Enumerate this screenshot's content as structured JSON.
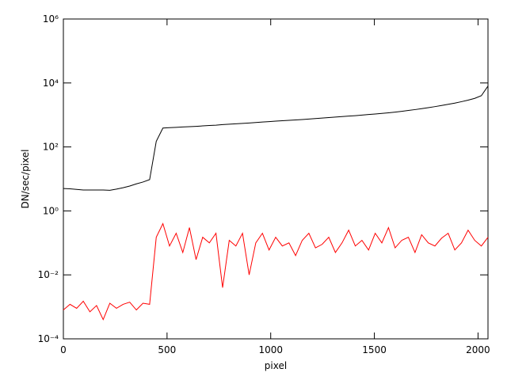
{
  "chart_data": {
    "type": "line",
    "xlabel": "pixel",
    "ylabel": "DN/sec/pixel",
    "xlim": [
      0,
      2048
    ],
    "xticks": [
      0,
      500,
      1000,
      1500,
      2000
    ],
    "ylim": [
      0.0001,
      1000000
    ],
    "ylog": true,
    "yticks": [
      {
        "value": 0.0001,
        "label": "10⁻⁴"
      },
      {
        "value": 0.01,
        "label": "10⁻²"
      },
      {
        "value": 1,
        "label": "10⁰"
      },
      {
        "value": 100,
        "label": "10²"
      },
      {
        "value": 10000,
        "label": "10⁴"
      },
      {
        "value": 1000000,
        "label": "10⁶"
      }
    ],
    "x": [
      0,
      32,
      64,
      96,
      128,
      160,
      192,
      224,
      256,
      288,
      320,
      352,
      384,
      416,
      448,
      480,
      512,
      544,
      576,
      608,
      640,
      672,
      704,
      736,
      768,
      800,
      832,
      864,
      896,
      928,
      960,
      992,
      1024,
      1056,
      1088,
      1120,
      1152,
      1184,
      1216,
      1248,
      1280,
      1312,
      1344,
      1376,
      1408,
      1440,
      1472,
      1504,
      1536,
      1568,
      1600,
      1632,
      1664,
      1696,
      1728,
      1760,
      1792,
      1824,
      1856,
      1888,
      1920,
      1952,
      1984,
      2016,
      2048
    ],
    "series": [
      {
        "color": "#000000",
        "values": [
          5,
          4.9,
          4.7,
          4.5,
          4.5,
          4.5,
          4.5,
          4.4,
          4.8,
          5.3,
          6,
          7,
          8,
          9.5,
          150,
          390,
          400,
          410,
          420,
          430,
          440,
          455,
          470,
          480,
          500,
          515,
          530,
          545,
          560,
          580,
          600,
          620,
          640,
          660,
          680,
          700,
          720,
          745,
          770,
          800,
          830,
          860,
          890,
          920,
          950,
          990,
          1030,
          1070,
          1120,
          1170,
          1230,
          1300,
          1380,
          1470,
          1570,
          1690,
          1820,
          1970,
          2150,
          2350,
          2600,
          2900,
          3300,
          4000,
          8000
        ]
      },
      {
        "color": "#ff0000",
        "values": [
          0.0008,
          0.0012,
          0.0009,
          0.0015,
          0.0007,
          0.0011,
          0.0004,
          0.0013,
          0.0009,
          0.0012,
          0.0014,
          0.0008,
          0.0013,
          0.0012,
          0.15,
          0.4,
          0.08,
          0.2,
          0.05,
          0.3,
          0.03,
          0.15,
          0.1,
          0.2,
          0.004,
          0.12,
          0.08,
          0.2,
          0.01,
          0.1,
          0.2,
          0.06,
          0.15,
          0.08,
          0.1,
          0.04,
          0.12,
          0.2,
          0.07,
          0.09,
          0.15,
          0.05,
          0.1,
          0.25,
          0.08,
          0.12,
          0.06,
          0.2,
          0.1,
          0.3,
          0.07,
          0.12,
          0.15,
          0.05,
          0.18,
          0.1,
          0.08,
          0.14,
          0.2,
          0.06,
          0.1,
          0.25,
          0.12,
          0.08,
          0.15
        ]
      }
    ]
  }
}
